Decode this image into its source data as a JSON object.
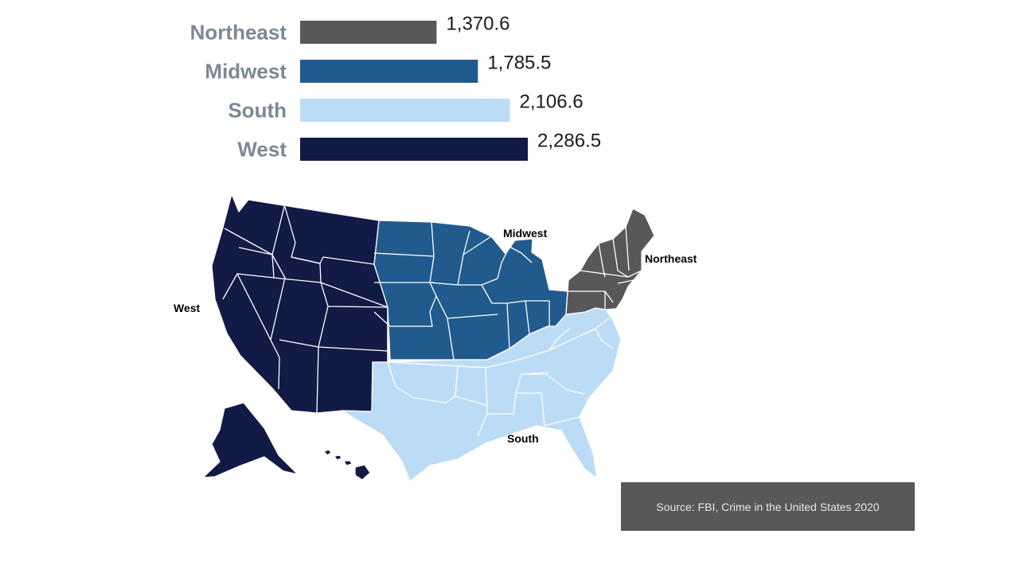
{
  "chart_data": {
    "type": "bar",
    "orientation": "horizontal",
    "categories": [
      "Northeast",
      "Midwest",
      "South",
      "West"
    ],
    "values": [
      1370.6,
      1785.5,
      2106.6,
      2286.5
    ],
    "value_labels": [
      "1,370.6",
      "1,785.5",
      "2,106.6",
      "2,286.5"
    ],
    "colors": [
      "#58585a",
      "#215b8d",
      "#bcdcf6",
      "#121a46"
    ],
    "xlim": [
      0,
      2286.5
    ],
    "grid": false
  },
  "map": {
    "labels": {
      "west": "West",
      "midwest": "Midwest",
      "northeast": "Northeast",
      "south": "South"
    },
    "region_colors": {
      "west": "#121a46",
      "midwest": "#215b8d",
      "south": "#bcdcf6",
      "northeast": "#58585a"
    }
  },
  "source": "Source: FBI, Crime in the United States 2020"
}
